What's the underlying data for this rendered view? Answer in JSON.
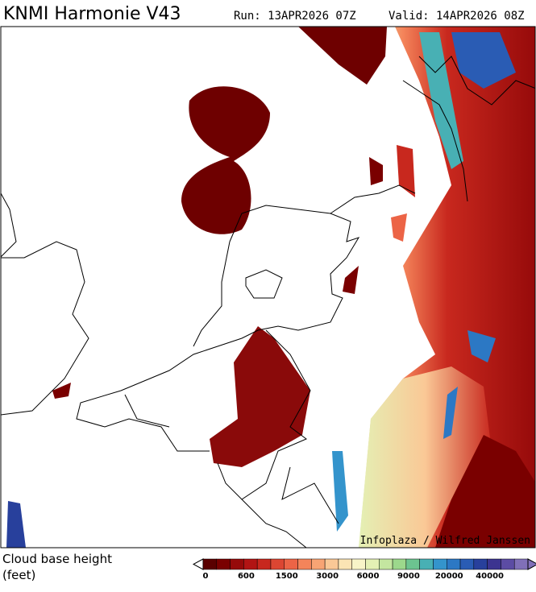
{
  "header": {
    "title": "KNMI Harmonie V43",
    "run": "Run: 13APR2026 07Z",
    "valid": "Valid: 14APR2026 08Z"
  },
  "map": {
    "credit": "Infoplaza / Wilfred Janssen"
  },
  "legend": {
    "label": "Cloud base height",
    "unit": "(feet)",
    "ticks": [
      0,
      600,
      1500,
      3000,
      6000,
      9000,
      20000,
      40000
    ],
    "colors": [
      "#5a0000",
      "#7a0000",
      "#960a0a",
      "#b21414",
      "#c8281e",
      "#dc4632",
      "#ec6446",
      "#f4845a",
      "#f8a474",
      "#fac896",
      "#fbe4b4",
      "#f8f4c8",
      "#e4f0b4",
      "#c4e6a0",
      "#9cd88c",
      "#6cc490",
      "#48b0b4",
      "#3494cc",
      "#2c78c4",
      "#2a5cb4",
      "#28409c",
      "#3c3490",
      "#5c4ca4",
      "#8070b8"
    ]
  }
}
